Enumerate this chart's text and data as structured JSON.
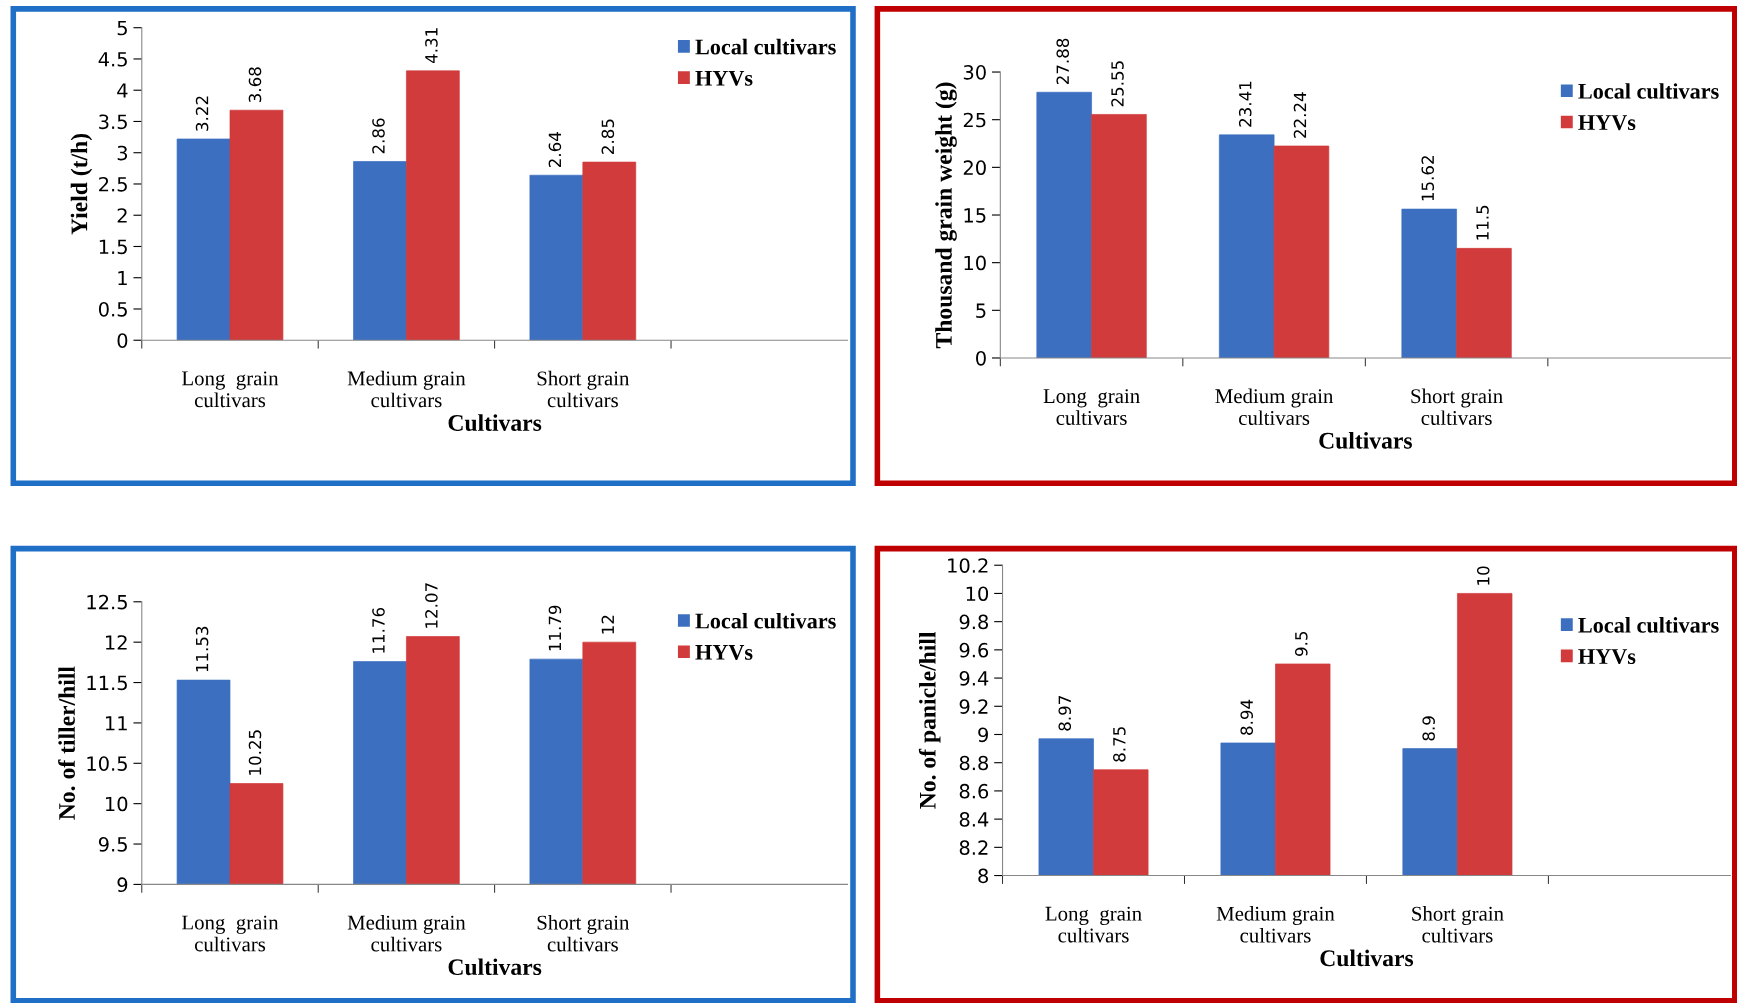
{
  "chart_data": [
    {
      "type": "bar",
      "categories": [
        "Long  grain\ncultivars",
        "Medium grain\ncultivars",
        "Short grain\ncultivars",
        null
      ],
      "xlabel": "Cultivars",
      "ylabel": "Yield (t/h)",
      "ylim": [
        0,
        5
      ],
      "yticks": [
        0,
        0.5,
        1,
        1.5,
        2,
        2.5,
        3,
        3.5,
        4,
        4.5,
        5
      ],
      "data_labels": true,
      "legend": "top right",
      "series": [
        {
          "name": "Local cultivars",
          "color": "#3d6fc0",
          "values": [
            3.22,
            2.86,
            2.64,
            null
          ]
        },
        {
          "name": "HYVs",
          "color": "#d13b3b",
          "values": [
            3.68,
            4.31,
            2.85,
            null
          ]
        }
      ]
    },
    {
      "type": "bar",
      "categories": [
        "Long  grain\ncultivars",
        "Medium grain\ncultivars",
        "Short grain\ncultivars",
        null
      ],
      "xlabel": "Cultivars",
      "ylabel": "Thousand grain weight (g)",
      "ylim": [
        0,
        30
      ],
      "yticks": [
        0,
        5,
        10,
        15,
        20,
        25,
        30
      ],
      "data_labels": true,
      "legend": "top right",
      "series": [
        {
          "name": "Local cultivars",
          "color": "#3d6fc0",
          "values": [
            27.88,
            23.41,
            15.62,
            null
          ]
        },
        {
          "name": "HYVs",
          "color": "#d13b3b",
          "values": [
            25.55,
            22.24,
            11.5,
            null
          ]
        }
      ]
    },
    {
      "type": "bar",
      "categories": [
        "Long  grain\ncultivars",
        "Medium grain\ncultivars",
        "Short grain\ncultivars",
        null
      ],
      "xlabel": "Cultivars",
      "ylabel": "No. of tiller/hill",
      "ylim": [
        9,
        12.5
      ],
      "yticks": [
        9,
        9.5,
        10,
        10.5,
        11,
        11.5,
        12,
        12.5
      ],
      "data_labels": true,
      "legend": "top right",
      "series": [
        {
          "name": "Local cultivars",
          "color": "#3d6fc0",
          "values": [
            11.53,
            11.76,
            11.79,
            null
          ]
        },
        {
          "name": "HYVs",
          "color": "#d13b3b",
          "values": [
            10.25,
            12.07,
            12,
            null
          ]
        }
      ]
    },
    {
      "type": "bar",
      "categories": [
        "Long  grain\ncultivars",
        "Medium grain\ncultivars",
        "Short grain\ncultivars",
        null
      ],
      "xlabel": "Cultivars",
      "ylabel": "No. of panicle/hill",
      "ylim": [
        8,
        10.2
      ],
      "yticks": [
        8,
        8.2,
        8.4,
        8.6,
        8.8,
        9,
        9.2,
        9.4,
        9.6,
        9.8,
        10,
        10.2
      ],
      "data_labels": true,
      "legend": "right",
      "series": [
        {
          "name": "Local cultivars",
          "color": "#3d6fc0",
          "values": [
            8.97,
            8.94,
            8.9,
            null
          ]
        },
        {
          "name": "HYVs",
          "color": "#d13b3b",
          "values": [
            8.75,
            9.5,
            10,
            null
          ]
        }
      ]
    }
  ]
}
